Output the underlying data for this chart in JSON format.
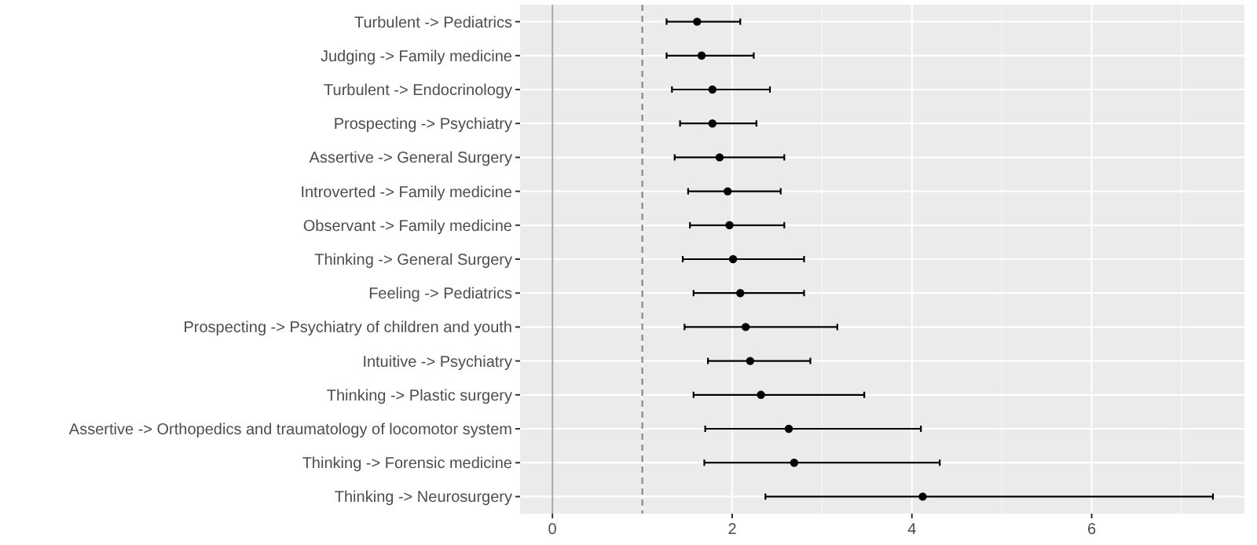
{
  "chart_data": {
    "type": "scatter",
    "orientation": "horizontal",
    "categories": [
      "Turbulent -> Pediatrics",
      "Judging -> Family medicine",
      "Turbulent -> Endocrinology",
      "Prospecting -> Psychiatry",
      "Assertive -> General Surgery",
      "Introverted -> Family medicine",
      "Observant -> Family medicine",
      "Thinking -> General Surgery",
      "Feeling -> Pediatrics",
      "Prospecting -> Psychiatry of children and youth",
      "Intuitive -> Psychiatry",
      "Thinking -> Plastic surgery",
      "Assertive -> Orthopedics and traumatology of locomotor system",
      "Thinking -> Forensic medicine",
      "Thinking -> Neurosurgery"
    ],
    "values": [
      1.61,
      1.66,
      1.78,
      1.78,
      1.86,
      1.95,
      1.97,
      2.01,
      2.09,
      2.15,
      2.2,
      2.32,
      2.63,
      2.69,
      4.12
    ],
    "errors": [
      [
        1.27,
        2.09
      ],
      [
        1.27,
        2.24
      ],
      [
        1.33,
        2.42
      ],
      [
        1.42,
        2.27
      ],
      [
        1.36,
        2.58
      ],
      [
        1.51,
        2.54
      ],
      [
        1.53,
        2.58
      ],
      [
        1.45,
        2.8
      ],
      [
        1.57,
        2.8
      ],
      [
        1.47,
        3.17
      ],
      [
        1.73,
        2.87
      ],
      [
        1.57,
        3.47
      ],
      [
        1.7,
        4.1
      ],
      [
        1.69,
        4.31
      ],
      [
        2.37,
        7.35
      ]
    ],
    "color": "#000000",
    "marker": "circle",
    "grid": true,
    "xlim": [
      -0.36,
      7.7
    ],
    "xticks": [
      0,
      2,
      4,
      6
    ],
    "ref_lines": [
      {
        "axis": "x",
        "value": 0,
        "color": "#a6a6a6",
        "line_style": "solid"
      },
      {
        "axis": "x",
        "value": 1,
        "color": "#7f7f7f",
        "line_style": "dashed"
      }
    ]
  }
}
